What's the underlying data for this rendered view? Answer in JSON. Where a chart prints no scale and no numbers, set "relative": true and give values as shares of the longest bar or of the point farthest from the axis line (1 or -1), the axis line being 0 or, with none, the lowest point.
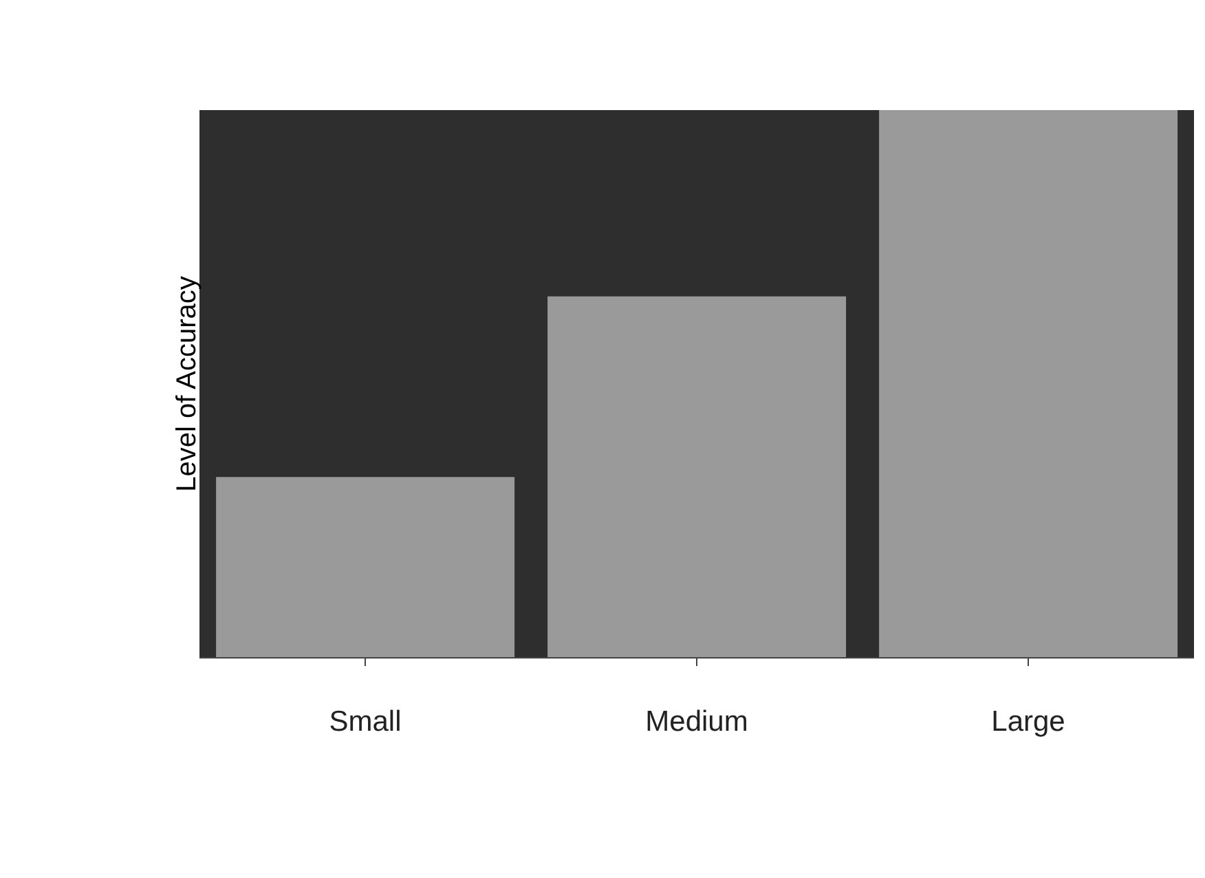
{
  "chart_data": {
    "type": "bar",
    "ylabel": "Level of Accuracy",
    "categories": [
      "Small",
      "Medium",
      "Large"
    ],
    "values": [
      0.33,
      0.66,
      1
    ],
    "color": "#9a9a9a",
    "relative": true
  }
}
